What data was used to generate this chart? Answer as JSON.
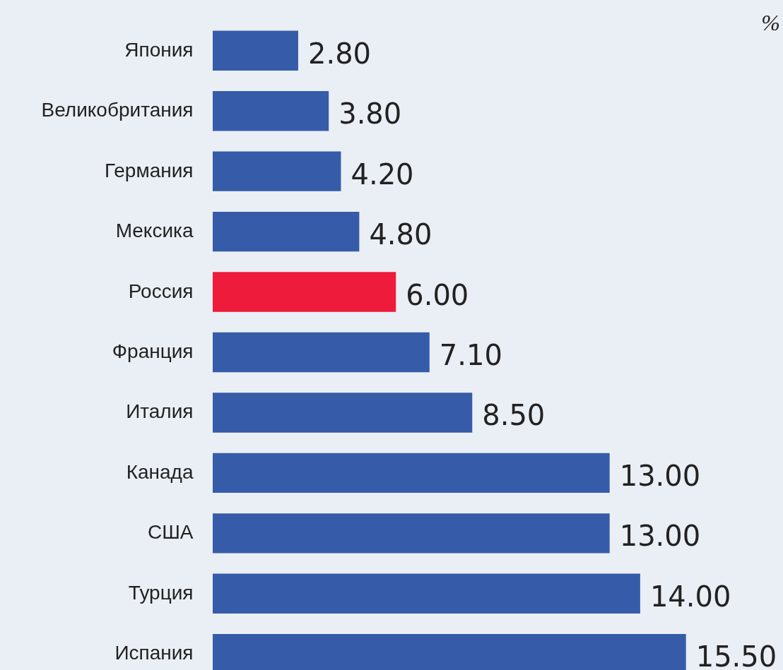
{
  "chart_data": {
    "type": "bar",
    "orientation": "horizontal",
    "categories": [
      "Япония",
      "Великобритания",
      "Германия",
      "Мексика",
      "Россия",
      "Франция",
      "Италия",
      "Канада",
      "США",
      "Турция",
      "Испания"
    ],
    "values": [
      2.8,
      3.8,
      4.2,
      4.8,
      6.0,
      7.1,
      8.5,
      13.0,
      13.0,
      14.0,
      15.5
    ],
    "value_labels": [
      "2.80",
      "3.80",
      "4.20",
      "4.80",
      "6.00",
      "7.10",
      "8.50",
      "13.00",
      "13.00",
      "14.00",
      "15.50"
    ],
    "colors": [
      "#365ca9",
      "#365ca9",
      "#365ca9",
      "#365ca9",
      "#ee1b3b",
      "#365ca9",
      "#365ca9",
      "#365ca9",
      "#365ca9",
      "#365ca9",
      "#365ca9"
    ],
    "annotations": [
      "%"
    ]
  }
}
